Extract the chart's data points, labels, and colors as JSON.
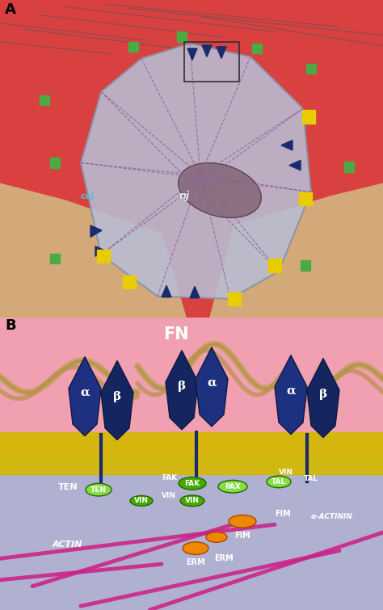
{
  "panel_A_label": "A",
  "panel_B_label": "B",
  "fig_width": 4.74,
  "fig_height": 7.55,
  "dpi": 100,
  "panel_A": {
    "bg_red": "#d94040",
    "bg_skin": "#d4a97a",
    "cell_color": "#b8bdd4",
    "cell_edge": "#8890a8",
    "nucleus_color": "#8a7080",
    "line_color": "#9060a0",
    "arrow_color": "#1a2a6e",
    "green_dot": "#4aaa44",
    "yellow_dot": "#e8cc00",
    "label_ccj": "ccj",
    "label_nj": "nj",
    "label_color_ccj": "#50c0d0",
    "label_color_nj": "#e8e8e8",
    "fiber_color": "#555555"
  },
  "panel_B": {
    "bg_top": "#f0a0b0",
    "bg_bottom": "#b0b0d0",
    "membrane_color": "#d4b800",
    "integrin_color": "#1a2a6e",
    "fn_color": "#c8a060",
    "protein_green_light": "#88dd44",
    "protein_green_dark": "#44aa00",
    "protein_orange": "#ee8800",
    "actin_color": "#cc2288",
    "label_FN": "FN",
    "label_alpha1": "α",
    "label_beta1": "β",
    "label_beta2": "β",
    "label_alpha2": "α",
    "label_alpha3": "α",
    "label_beta3": "β",
    "label_TEN": "TEN",
    "label_FAK": "FAK",
    "label_VIN1": "VIN",
    "label_VIN2": "VIN",
    "label_PAX": "PAX",
    "label_TAL": "TAL",
    "label_FIM": "FIM",
    "label_ERM": "ERM",
    "label_ACTIN": "ACTIN",
    "label_alpha_actinin": "α–ACTININ"
  }
}
